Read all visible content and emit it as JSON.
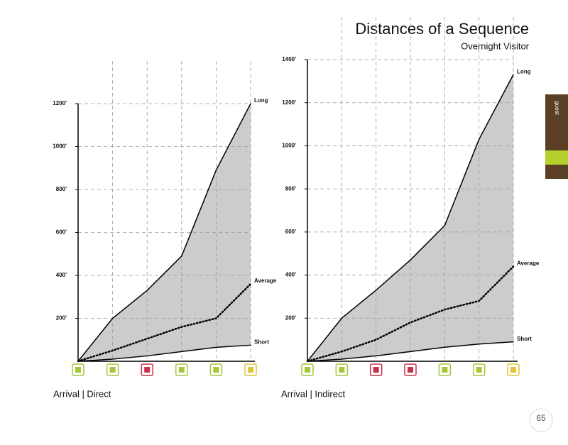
{
  "title": "Distances of a Sequence",
  "subtitle": "Overnight Visitor",
  "sidebar_label": "guest",
  "page_number": "65",
  "chart_data": [
    {
      "type": "line",
      "x_label": "Arrival | Direct",
      "categories": [
        null,
        null,
        null,
        null,
        null,
        null
      ],
      "icon_colors": [
        "#a6c63a",
        "#a6c63a",
        "#c8304a",
        "#a6c63a",
        "#a6c63a",
        "#e2c43a"
      ],
      "ylim": [
        0,
        1200
      ],
      "yticks": [
        {
          "value": 200,
          "label": "200'"
        },
        {
          "value": 400,
          "label": "400'"
        },
        {
          "value": 600,
          "label": "600'"
        },
        {
          "value": 800,
          "label": "800'"
        },
        {
          "value": 1000,
          "label": "1000'"
        },
        {
          "value": 1200,
          "label": "1200'"
        }
      ],
      "grid": true,
      "range_color": "#cccccc",
      "series": [
        {
          "name": "Long",
          "color": "#000000",
          "style": "solid",
          "values": [
            0,
            200,
            330,
            490,
            890,
            1200
          ]
        },
        {
          "name": "Average",
          "color": "#000000",
          "style": "dotted",
          "values": [
            0,
            50,
            105,
            160,
            200,
            360
          ]
        },
        {
          "name": "Short",
          "color": "#000000",
          "style": "solid",
          "values": [
            0,
            10,
            25,
            45,
            65,
            75
          ]
        }
      ]
    },
    {
      "type": "line",
      "x_label": "Arrival | Indirect",
      "categories": [
        null,
        null,
        null,
        null,
        null,
        null,
        null
      ],
      "icon_colors": [
        "#a6c63a",
        "#a6c63a",
        "#c8304a",
        "#c8304a",
        "#a6c63a",
        "#a6c63a",
        "#e2c43a"
      ],
      "ylim": [
        0,
        1400
      ],
      "yticks": [
        {
          "value": 200,
          "label": "200'"
        },
        {
          "value": 400,
          "label": "400'"
        },
        {
          "value": 600,
          "label": "600'"
        },
        {
          "value": 800,
          "label": "800'"
        },
        {
          "value": 1000,
          "label": "1000'"
        },
        {
          "value": 1200,
          "label": "1200'"
        },
        {
          "value": 1400,
          "label": "1400'"
        }
      ],
      "grid": true,
      "range_color": "#cccccc",
      "series": [
        {
          "name": "Long",
          "color": "#000000",
          "style": "solid",
          "values": [
            0,
            200,
            330,
            470,
            630,
            1030,
            1330
          ]
        },
        {
          "name": "Average",
          "color": "#000000",
          "style": "dotted",
          "values": [
            0,
            45,
            100,
            180,
            240,
            280,
            440
          ]
        },
        {
          "name": "Short",
          "color": "#000000",
          "style": "solid",
          "values": [
            0,
            10,
            25,
            45,
            65,
            80,
            90
          ]
        }
      ]
    }
  ]
}
